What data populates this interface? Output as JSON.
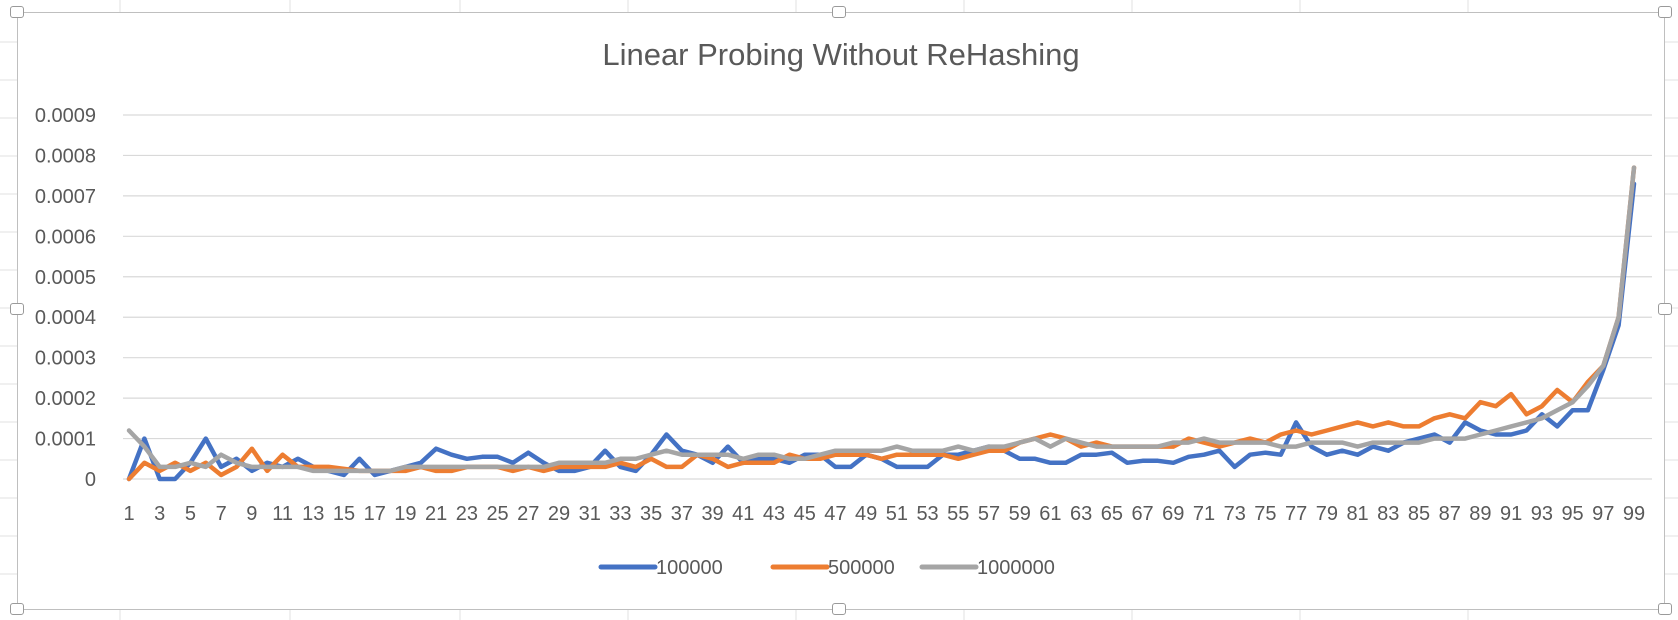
{
  "chart_data": {
    "type": "line",
    "title": "Linear Probing Without ReHashing",
    "xlabel": "",
    "ylabel": "",
    "ylim": [
      0,
      0.0009
    ],
    "ytick_values": [
      0,
      0.0001,
      0.0002,
      0.0003,
      0.0004,
      0.0005,
      0.0006,
      0.0007,
      0.0008,
      0.0009
    ],
    "ytick_labels": [
      "0",
      "0.0001",
      "0.0002",
      "0.0003",
      "0.0004",
      "0.0005",
      "0.0006",
      "0.0007",
      "0.0008",
      "0.0009"
    ],
    "xtick_labels": [
      "1",
      "3",
      "5",
      "7",
      "9",
      "11",
      "13",
      "15",
      "17",
      "19",
      "21",
      "23",
      "25",
      "27",
      "29",
      "31",
      "33",
      "35",
      "37",
      "39",
      "41",
      "43",
      "45",
      "47",
      "49",
      "51",
      "53",
      "55",
      "57",
      "59",
      "61",
      "63",
      "65",
      "67",
      "69",
      "71",
      "73",
      "75",
      "77",
      "79",
      "81",
      "83",
      "85",
      "87",
      "89",
      "91",
      "93",
      "95",
      "97",
      "99"
    ],
    "grid": true,
    "legend_position": "bottom",
    "series": [
      {
        "name": "100000",
        "color": "#4472c4",
        "values": [
          0,
          0.0001,
          0,
          0,
          4e-05,
          0.0001,
          3e-05,
          5e-05,
          2e-05,
          4e-05,
          3e-05,
          5e-05,
          3e-05,
          2e-05,
          1e-05,
          5e-05,
          1e-05,
          2e-05,
          3e-05,
          4e-05,
          7.5e-05,
          6e-05,
          5e-05,
          5.5e-05,
          5.5e-05,
          4e-05,
          6.5e-05,
          4e-05,
          2e-05,
          2e-05,
          3e-05,
          7e-05,
          3e-05,
          2e-05,
          6e-05,
          0.00011,
          7e-05,
          6e-05,
          4e-05,
          8e-05,
          4e-05,
          5e-05,
          5e-05,
          4e-05,
          6e-05,
          6e-05,
          3e-05,
          3e-05,
          6e-05,
          5e-05,
          3e-05,
          3e-05,
          3e-05,
          6e-05,
          6e-05,
          7e-05,
          8e-05,
          7e-05,
          5e-05,
          5e-05,
          4e-05,
          4e-05,
          6e-05,
          6e-05,
          6.5e-05,
          4e-05,
          4.5e-05,
          4.5e-05,
          4e-05,
          5.5e-05,
          6e-05,
          7e-05,
          3e-05,
          6e-05,
          6.5e-05,
          6e-05,
          0.00014,
          8e-05,
          6e-05,
          7e-05,
          6e-05,
          8e-05,
          7e-05,
          9e-05,
          0.0001,
          0.00011,
          9e-05,
          0.00014,
          0.00012,
          0.00011,
          0.00011,
          0.00012,
          0.00016,
          0.00013,
          0.00017,
          0.00017,
          0.00027,
          0.00038,
          0.00073
        ]
      },
      {
        "name": "500000",
        "color": "#ed7d31",
        "values": [
          0,
          4e-05,
          2e-05,
          4e-05,
          2e-05,
          4e-05,
          1e-05,
          3e-05,
          7.5e-05,
          2e-05,
          6e-05,
          3e-05,
          3e-05,
          3e-05,
          2.5e-05,
          2e-05,
          2e-05,
          2e-05,
          2e-05,
          3e-05,
          2e-05,
          2e-05,
          3e-05,
          3e-05,
          3e-05,
          2e-05,
          3e-05,
          2e-05,
          3e-05,
          3e-05,
          3e-05,
          3e-05,
          4e-05,
          3e-05,
          5e-05,
          3e-05,
          3e-05,
          6e-05,
          5e-05,
          3e-05,
          4e-05,
          4e-05,
          4e-05,
          6e-05,
          5e-05,
          5e-05,
          6e-05,
          6e-05,
          6e-05,
          5e-05,
          6e-05,
          6e-05,
          6e-05,
          6e-05,
          5e-05,
          6e-05,
          7e-05,
          7e-05,
          9e-05,
          0.0001,
          0.00011,
          0.0001,
          8e-05,
          9e-05,
          8e-05,
          8e-05,
          8e-05,
          8e-05,
          8e-05,
          0.0001,
          9e-05,
          8e-05,
          9e-05,
          0.0001,
          9e-05,
          0.00011,
          0.00012,
          0.00011,
          0.00012,
          0.00013,
          0.00014,
          0.00013,
          0.00014,
          0.00013,
          0.00013,
          0.00015,
          0.00016,
          0.00015,
          0.00019,
          0.00018,
          0.00021,
          0.00016,
          0.00018,
          0.00022,
          0.00019,
          0.00024,
          0.00028,
          0.0004,
          0.00077
        ]
      },
      {
        "name": "1000000",
        "color": "#a5a5a5",
        "values": [
          0.00012,
          8e-05,
          3e-05,
          3e-05,
          4e-05,
          3e-05,
          6e-05,
          4e-05,
          3e-05,
          3e-05,
          3e-05,
          3e-05,
          2e-05,
          2e-05,
          2e-05,
          2e-05,
          2e-05,
          2e-05,
          3e-05,
          3e-05,
          3e-05,
          3e-05,
          3e-05,
          3e-05,
          3e-05,
          3e-05,
          3e-05,
          3e-05,
          4e-05,
          4e-05,
          4e-05,
          4e-05,
          5e-05,
          5e-05,
          6e-05,
          7e-05,
          6e-05,
          6e-05,
          6e-05,
          6e-05,
          5e-05,
          6e-05,
          6e-05,
          5e-05,
          5e-05,
          6e-05,
          7e-05,
          7e-05,
          7e-05,
          7e-05,
          8e-05,
          7e-05,
          7e-05,
          7e-05,
          8e-05,
          7e-05,
          8e-05,
          8e-05,
          9e-05,
          0.0001,
          8e-05,
          0.0001,
          9e-05,
          8e-05,
          8e-05,
          8e-05,
          8e-05,
          8e-05,
          9e-05,
          9e-05,
          0.0001,
          9e-05,
          9e-05,
          9e-05,
          9e-05,
          8e-05,
          8e-05,
          9e-05,
          9e-05,
          9e-05,
          8e-05,
          9e-05,
          9e-05,
          9e-05,
          9e-05,
          0.0001,
          0.0001,
          0.0001,
          0.00011,
          0.00012,
          0.00013,
          0.00014,
          0.00015,
          0.00017,
          0.00019,
          0.00023,
          0.00028,
          0.0004,
          0.00077
        ]
      }
    ]
  }
}
